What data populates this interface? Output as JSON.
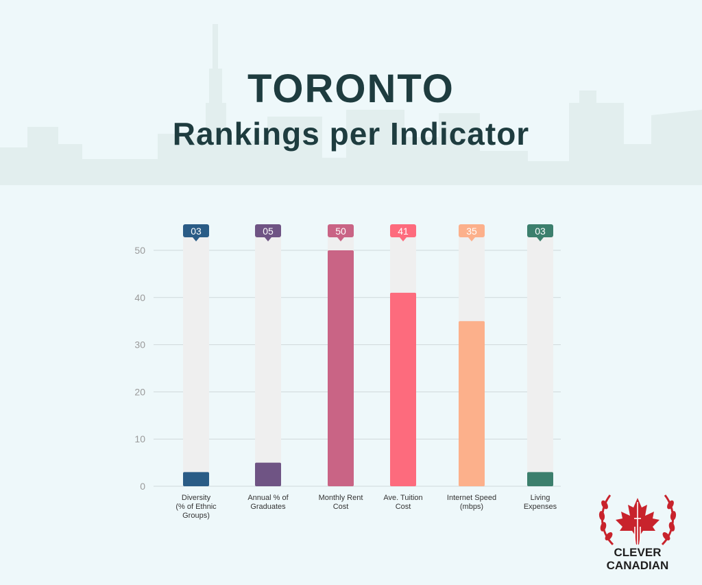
{
  "title": "TORONTO",
  "subtitle": "Rankings per Indicator",
  "brand": {
    "line1": "CLEVER",
    "line2": "CANADIAN",
    "leaf_color": "#c8232c"
  },
  "colors": {
    "track": "#efefef",
    "grid": "#cfd8da",
    "background": "#eef8fa"
  },
  "chart_data": {
    "type": "bar",
    "title": "",
    "xlabel": "",
    "ylabel": "",
    "ylim": [
      0,
      53
    ],
    "yticks": [
      0,
      10,
      20,
      30,
      40,
      50
    ],
    "grid": true,
    "categories": [
      [
        "Diversity",
        "(% of Ethnic",
        "Groups)"
      ],
      [
        "Annual % of",
        "Graduates"
      ],
      [
        "Monthly Rent",
        "Cost"
      ],
      [
        "Ave. Tuition",
        "Cost"
      ],
      [
        "Internet Speed",
        "(mbps)"
      ],
      [
        "Living",
        "Expenses"
      ]
    ],
    "values": [
      3,
      5,
      50,
      41,
      35,
      3
    ],
    "labels": [
      "03",
      "05",
      "50",
      "41",
      "35",
      "03"
    ],
    "colors": [
      "#2a5c86",
      "#6f5484",
      "#c96485",
      "#fd6b7d",
      "#fcb08b",
      "#3c7f6d"
    ]
  }
}
